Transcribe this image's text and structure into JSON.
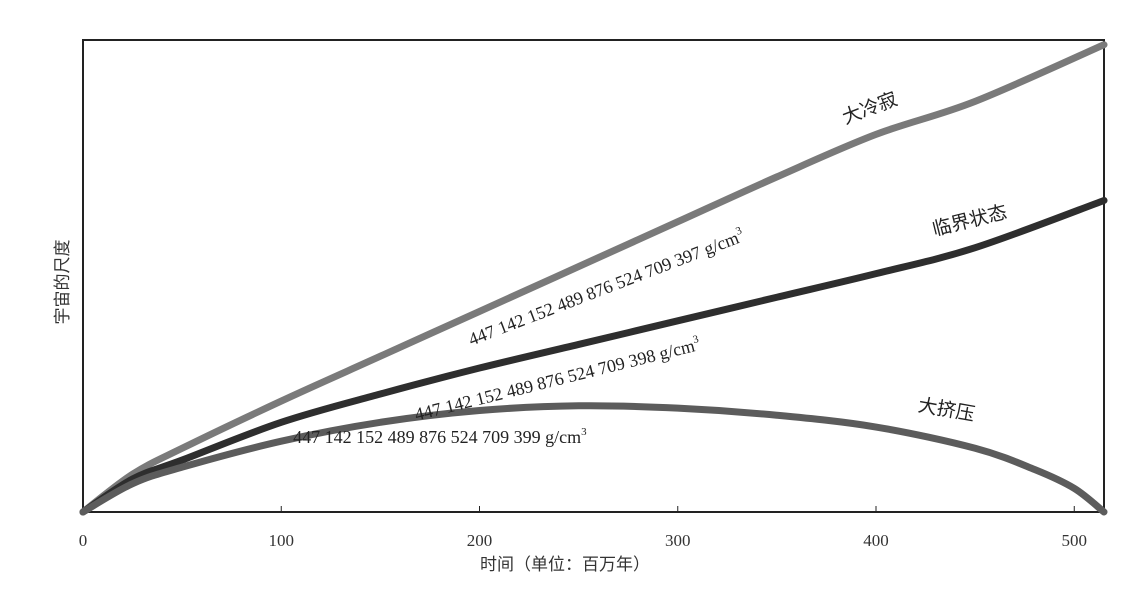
{
  "chart_data": {
    "type": "line",
    "xlabel": "时间（单位：百万年）",
    "ylabel": "宇宙的尺度",
    "xlim": [
      0,
      515
    ],
    "ylim": [
      0,
      1
    ],
    "x_ticks": [
      0,
      100,
      200,
      300,
      400,
      500
    ],
    "x_tick_labels": [
      "0",
      "100",
      "200",
      "300",
      "400",
      "500"
    ],
    "y_ticks": [],
    "grid": false,
    "legend": "none",
    "series": [
      {
        "name": "大冷寂",
        "density_label": "447 142 152 489 876 524 709 397 g/cm",
        "unit_superscript": "3",
        "color": "#7a7a7a",
        "x": [
          0,
          25,
          50,
          100,
          150,
          200,
          250,
          300,
          350,
          400,
          450,
          515
        ],
        "y": [
          0,
          0.08,
          0.135,
          0.235,
          0.33,
          0.425,
          0.52,
          0.615,
          0.71,
          0.8,
          0.87,
          0.99
        ]
      },
      {
        "name": "临界状态",
        "density_label": "447 142 152 489 876 524 709 398 g/cm",
        "unit_superscript": "3",
        "color": "#2e2e2e",
        "x": [
          0,
          25,
          50,
          100,
          150,
          200,
          250,
          300,
          350,
          400,
          450,
          515
        ],
        "y": [
          0,
          0.07,
          0.11,
          0.19,
          0.25,
          0.305,
          0.355,
          0.405,
          0.455,
          0.505,
          0.56,
          0.66
        ]
      },
      {
        "name": "大挤压",
        "density_label": "447 142 152 489 876 524 709 399 g/cm",
        "unit_superscript": "3",
        "color": "#5c5c5c",
        "x": [
          0,
          25,
          50,
          100,
          150,
          200,
          250,
          300,
          350,
          400,
          450,
          480,
          500,
          515
        ],
        "y": [
          0,
          0.06,
          0.095,
          0.15,
          0.19,
          0.215,
          0.225,
          0.22,
          0.205,
          0.18,
          0.135,
          0.09,
          0.05,
          0
        ]
      }
    ]
  }
}
